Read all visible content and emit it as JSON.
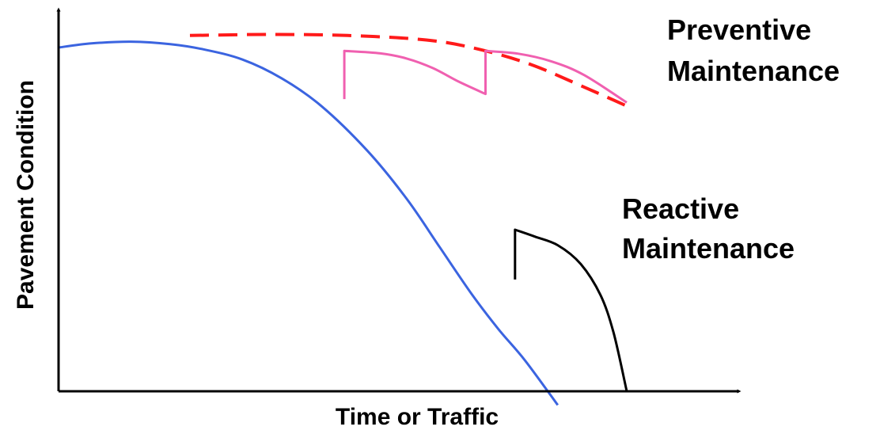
{
  "chart_data": {
    "type": "line",
    "title": "",
    "xlabel": "Time or Traffic",
    "ylabel": "Pavement Condition",
    "xlim": [
      0,
      100
    ],
    "ylim": [
      0,
      100
    ],
    "grid": false,
    "axis_ticks": false,
    "series": [
      {
        "key": "deterioration",
        "color": "#3b64e0",
        "dash": false,
        "points": [
          [
            0,
            100
          ],
          [
            5,
            101.2
          ],
          [
            11,
            101.7
          ],
          [
            17,
            101
          ],
          [
            22,
            99.5
          ],
          [
            28,
            96.5
          ],
          [
            34,
            91
          ],
          [
            40,
            83
          ],
          [
            47,
            70
          ],
          [
            53,
            56
          ],
          [
            58,
            42
          ],
          [
            63,
            28
          ],
          [
            67,
            18
          ],
          [
            71,
            9
          ],
          [
            76,
            -4
          ]
        ]
      },
      {
        "key": "preventive-target",
        "color": "#ff1a1a",
        "dash": true,
        "points": [
          [
            20,
            103.5
          ],
          [
            32,
            103.8
          ],
          [
            44,
            103.5
          ],
          [
            56,
            102.2
          ],
          [
            64,
            99.5
          ],
          [
            72,
            95
          ],
          [
            80,
            88.5
          ],
          [
            86.5,
            83
          ]
        ]
      },
      {
        "key": "preventive-treatments",
        "name": "Preventive Maintenance",
        "color": "#f060b0",
        "dash": false,
        "points": [
          [
            43.5,
            85
          ],
          [
            43.5,
            99
          ],
          [
            49,
            98.3
          ],
          [
            53,
            96.8
          ],
          [
            57,
            94
          ],
          [
            61,
            90
          ],
          [
            65,
            86.5
          ],
          [
            65,
            99
          ],
          [
            70,
            98.2
          ],
          [
            75,
            96
          ],
          [
            80,
            92
          ],
          [
            86.5,
            84
          ]
        ]
      },
      {
        "key": "reactive-treatment",
        "name": "Reactive Maintenance",
        "color": "#000000",
        "dash": false,
        "points": [
          [
            69.5,
            32.5
          ],
          [
            69.5,
            47
          ],
          [
            72.5,
            45
          ],
          [
            76,
            42.5
          ],
          [
            79.5,
            37
          ],
          [
            82.5,
            28
          ],
          [
            84.5,
            17
          ],
          [
            86.5,
            0
          ]
        ]
      }
    ],
    "annotations": [
      {
        "series": "preventive-treatments",
        "lines": [
          "Preventive",
          "Maintenance"
        ]
      },
      {
        "series": "reactive-treatment",
        "lines": [
          "Reactive",
          "Maintenance"
        ]
      }
    ]
  }
}
